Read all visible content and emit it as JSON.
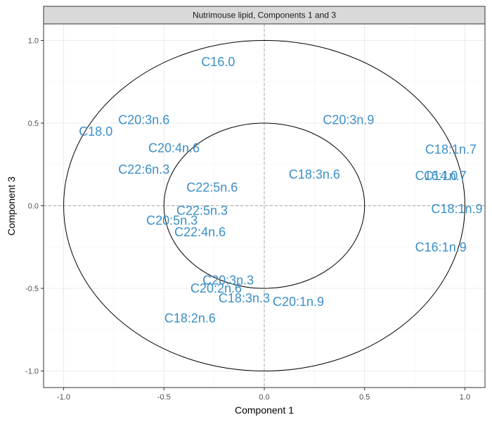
{
  "chart_data": {
    "type": "scatter",
    "title": "Nutrimouse lipid, Components 1 and 3",
    "xlabel": "Component  1",
    "ylabel": "Component  3",
    "xlim": [
      -1.1,
      1.1
    ],
    "ylim": [
      -1.1,
      1.1
    ],
    "x_ticks": [
      "-1.0",
      "-0.5",
      "0.0",
      "0.5",
      "1.0"
    ],
    "y_ticks": [
      "1.0",
      "0.5",
      "0.0",
      "-0.5",
      "-1.0"
    ],
    "grid": true,
    "circles": [
      {
        "radius": 1.0
      },
      {
        "radius": 0.5
      }
    ],
    "label_color": "#3b8fc7",
    "points": [
      {
        "label": "C16.0",
        "x": -0.23,
        "y": 0.87
      },
      {
        "label": "C20:3n.6",
        "x": -0.6,
        "y": 0.52
      },
      {
        "label": "C18.0",
        "x": -0.84,
        "y": 0.45
      },
      {
        "label": "C20:4n.6",
        "x": -0.45,
        "y": 0.35
      },
      {
        "label": "C22:6n.3",
        "x": -0.6,
        "y": 0.22
      },
      {
        "label": "C22:5n.6",
        "x": -0.26,
        "y": 0.11
      },
      {
        "label": "C22:5n.3",
        "x": -0.31,
        "y": -0.03
      },
      {
        "label": "C20:5n.3",
        "x": -0.46,
        "y": -0.09
      },
      {
        "label": "C22:4n.6",
        "x": -0.32,
        "y": -0.16
      },
      {
        "label": "C20:3n.9",
        "x": 0.42,
        "y": 0.52
      },
      {
        "label": "C18:3n.6",
        "x": 0.25,
        "y": 0.19
      },
      {
        "label": "C18:1n.7",
        "x": 0.93,
        "y": 0.34
      },
      {
        "label": "C14.0",
        "x": 0.88,
        "y": 0.18
      },
      {
        "label": "C16:1n.7",
        "x": 0.88,
        "y": 0.18
      },
      {
        "label": "C18:1n.9",
        "x": 0.96,
        "y": -0.02
      },
      {
        "label": "C16:1n.9",
        "x": 0.88,
        "y": -0.25
      },
      {
        "label": "C20:3n.3",
        "x": -0.18,
        "y": -0.45
      },
      {
        "label": "C20:2n.6",
        "x": -0.24,
        "y": -0.5
      },
      {
        "label": "C18:3n.3",
        "x": -0.1,
        "y": -0.56
      },
      {
        "label": "C20:1n.9",
        "x": 0.17,
        "y": -0.58
      },
      {
        "label": "C18:2n.6",
        "x": -0.37,
        "y": -0.68
      }
    ]
  }
}
